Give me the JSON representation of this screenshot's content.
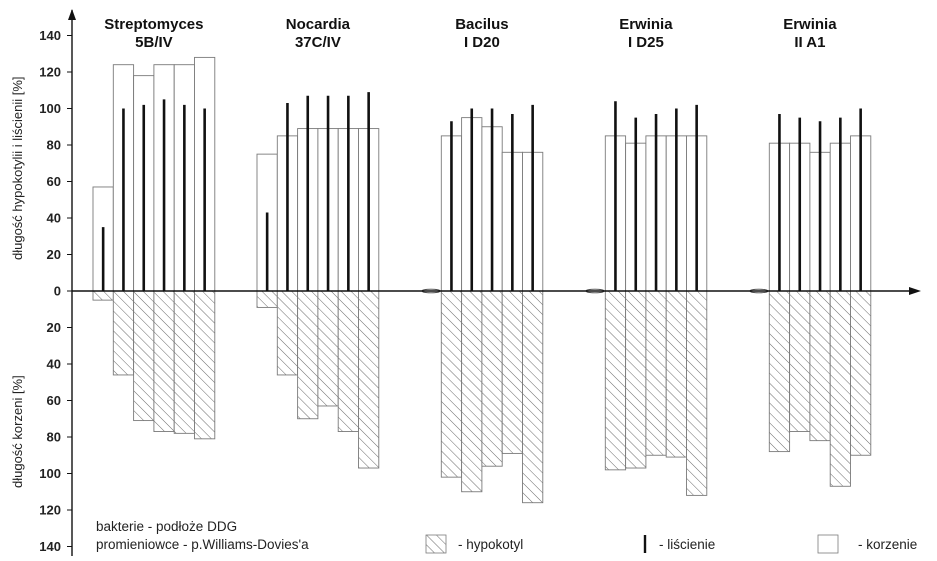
{
  "chart_data": {
    "type": "bar",
    "ylabel_top": "długość hypokotylii i liścienii [%]",
    "ylabel_bottom": "długość korzeni [%]",
    "y_ticks_up": [
      "0",
      "20",
      "40",
      "60",
      "80",
      "100",
      "120",
      "140"
    ],
    "y_ticks_down": [
      "20",
      "40",
      "60",
      "80",
      "100",
      "120",
      "140"
    ],
    "ylim": [
      -140,
      140
    ],
    "groups": [
      {
        "title_line1": "Streptomyces",
        "title_line2": "5B/IV",
        "korzenie": [
          57,
          124,
          118,
          124,
          124,
          128
        ],
        "liscienie": [
          35,
          100,
          102,
          105,
          102,
          100
        ],
        "hypokotyl": [
          5,
          46,
          71,
          77,
          78,
          81
        ]
      },
      {
        "title_line1": "Nocardia",
        "title_line2": "37C/IV",
        "korzenie": [
          75,
          85,
          89,
          89,
          89,
          89
        ],
        "liscienie": [
          43,
          103,
          107,
          107,
          107,
          109
        ],
        "hypokotyl": [
          9,
          46,
          70,
          63,
          77,
          97
        ]
      },
      {
        "title_line1": "Bacilus",
        "title_line2": "I D20",
        "korzenie": [
          0,
          85,
          95,
          90,
          76,
          76
        ],
        "liscienie": [
          0,
          93,
          100,
          100,
          97,
          102
        ],
        "hypokotyl": [
          0,
          102,
          110,
          96,
          89,
          116
        ]
      },
      {
        "title_line1": "Erwinia",
        "title_line2": "I D25",
        "korzenie": [
          0,
          85,
          81,
          85,
          85,
          85
        ],
        "liscienie": [
          0,
          104,
          95,
          97,
          100,
          102
        ],
        "hypokotyl": [
          0,
          98,
          97,
          90,
          91,
          112
        ]
      },
      {
        "title_line1": "Erwinia",
        "title_line2": "II A1",
        "korzenie": [
          0,
          81,
          81,
          76,
          81,
          85
        ],
        "liscienie": [
          0,
          97,
          95,
          93,
          95,
          100
        ],
        "hypokotyl": [
          0,
          88,
          77,
          82,
          107,
          90
        ]
      }
    ],
    "notes": {
      "line1": "bakterie - podłoże DDG",
      "line2": "promieniowce - p.Williams-Dovies'a"
    },
    "legend": {
      "hypokotyl": "- hypokotyl",
      "liscienie": "- liścienie",
      "korzenie": "- korzenie"
    },
    "colors": {
      "bar_outline": "#7a7a7a",
      "leaf_line": "#111111",
      "axis": "#111111",
      "hatch": "#6a6a6a"
    }
  }
}
